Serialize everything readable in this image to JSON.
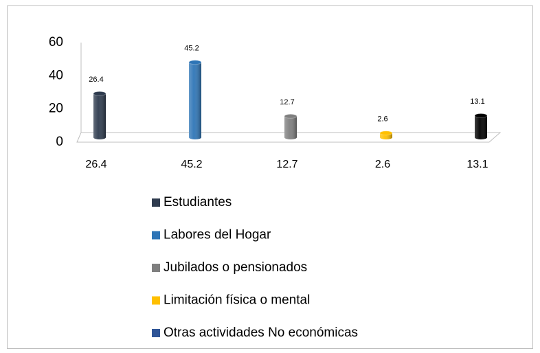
{
  "chart_data": {
    "type": "bar3d",
    "categories": [
      "26.4",
      "45.2",
      "12.7",
      "2.6",
      "13.1"
    ],
    "series": [
      {
        "name": "Estudiantes",
        "color": "#2e3b4e",
        "bar_color": "#2e3b4e",
        "values": [
          26.4,
          null,
          null,
          null,
          null
        ]
      },
      {
        "name": "Labores del Hogar",
        "color": "#2e75b6",
        "bar_color": "#2e75b6",
        "values": [
          null,
          45.2,
          null,
          null,
          null
        ]
      },
      {
        "name": "Jubilados o pensionados",
        "color": "#7f7f7f",
        "bar_color": "#7f7f7f",
        "values": [
          null,
          null,
          12.7,
          null,
          null
        ]
      },
      {
        "name": "Limitación física o mental",
        "color": "#ffc000",
        "bar_color": "#ffc000",
        "values": [
          null,
          null,
          null,
          2.6,
          null
        ]
      },
      {
        "name": "Otras actividades No económicas",
        "color": "#2f5597",
        "bar_color": "#000000",
        "values": [
          null,
          null,
          null,
          null,
          13.1
        ]
      }
    ],
    "ylim": [
      0,
      60
    ],
    "yticks": [
      0,
      20,
      40,
      60
    ],
    "legend": "bottom"
  }
}
